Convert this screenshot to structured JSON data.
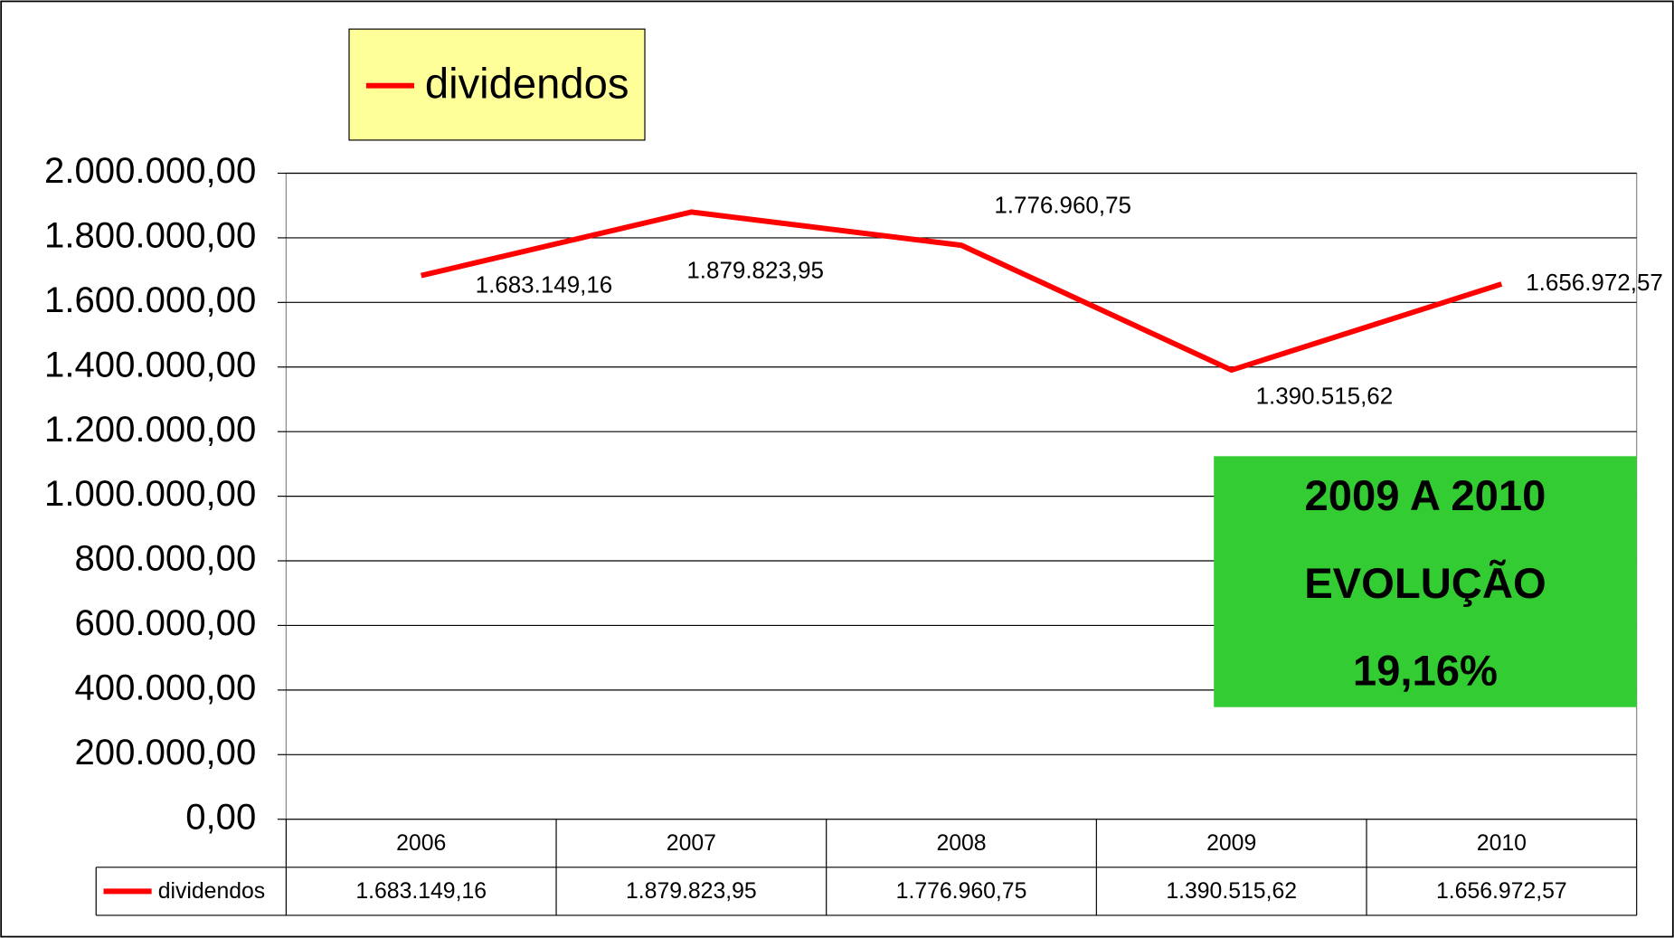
{
  "chart_data": {
    "type": "line",
    "categories": [
      "2006",
      "2007",
      "2008",
      "2009",
      "2010"
    ],
    "series": [
      {
        "name": "dividendos",
        "color": "#ff0000",
        "values": [
          1683149.16,
          1879823.95,
          1776960.75,
          1390515.62,
          1656972.57
        ],
        "value_labels": [
          "1.683.149,16",
          "1.879.823,95",
          "1.776.960,75",
          "1.390.515,62",
          "1.656.972,57"
        ]
      }
    ],
    "ylim": [
      0,
      2000000
    ],
    "yticks": [
      {
        "value": 0,
        "label": "0,00"
      },
      {
        "value": 200000,
        "label": "200.000,00"
      },
      {
        "value": 400000,
        "label": "400.000,00"
      },
      {
        "value": 600000,
        "label": "600.000,00"
      },
      {
        "value": 800000,
        "label": "800.000,00"
      },
      {
        "value": 1000000,
        "label": "1.000.000,00"
      },
      {
        "value": 1200000,
        "label": "1.200.000,00"
      },
      {
        "value": 1400000,
        "label": "1.400.000,00"
      },
      {
        "value": 1600000,
        "label": "1.600.000,00"
      },
      {
        "value": 1800000,
        "label": "1.800.000,00"
      },
      {
        "value": 2000000,
        "label": "2.000.000,00"
      }
    ],
    "grid": true,
    "legend": "top-left",
    "annotation": [
      "2009 A 2010",
      "EVOLUÇÃO",
      "19,16%"
    ],
    "annotation_color": "#33cc33"
  }
}
